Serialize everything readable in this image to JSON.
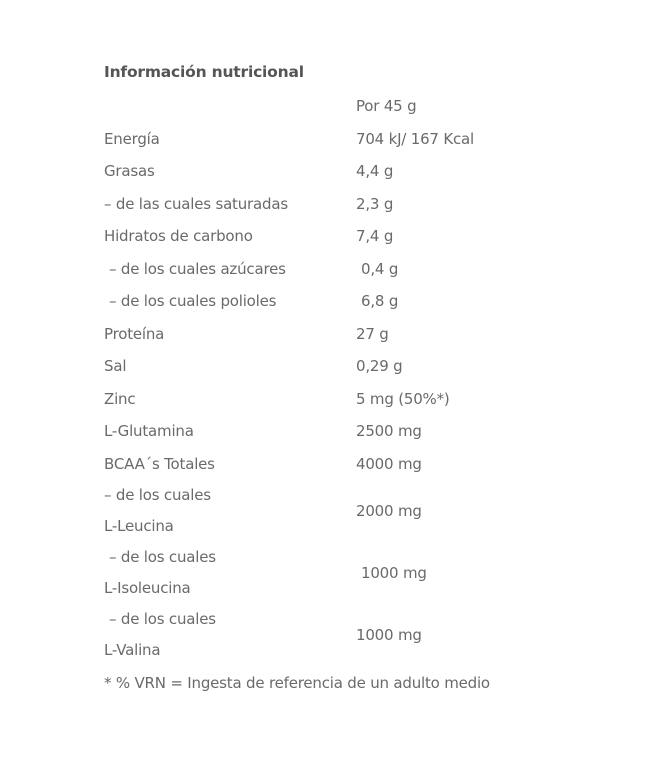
{
  "title": "Información nutricional",
  "header_value": "Por 45 g",
  "rows": [
    {
      "label": "Energía",
      "value": "704 kJ/ 167 Kcal"
    },
    {
      "label": "Grasas",
      "value": "4,4 g"
    },
    {
      "label": "– de las cuales saturadas",
      "value": "2,3 g"
    },
    {
      "label": "Hidratos de carbono",
      "value": "7,4 g"
    },
    {
      "label": "– de los cuales azúcares",
      "value": "0,4 g"
    },
    {
      "label": "– de los cuales polioles",
      "value": "6,8 g"
    },
    {
      "label": "Proteína",
      "value": "27 g"
    },
    {
      "label": "Sal",
      "value": "0,29 g"
    },
    {
      "label": "Zinc",
      "value": "5 mg (50%*)"
    },
    {
      "label": "L-Glutamina",
      "value": "2500 mg"
    },
    {
      "label": "BCAA´s Totales",
      "value": "4000 mg"
    },
    {
      "label_line1": "– de los cuales",
      "label_line2": "L-Leucina",
      "value": "2000 mg"
    },
    {
      "label_line1": "– de los cuales",
      "label_line2": "L-Isoleucina",
      "value": "1000 mg"
    },
    {
      "label_line1": "– de los cuales",
      "label_line2": "L-Valina",
      "value": "1000 mg"
    }
  ],
  "footnote": "* % VRN = Ingesta de referencia de un adulto medio"
}
